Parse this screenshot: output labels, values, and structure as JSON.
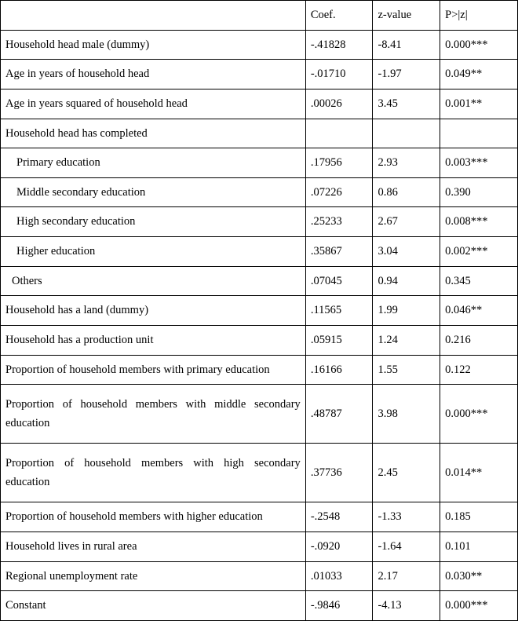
{
  "header": {
    "label": "",
    "coef": "Coef.",
    "z": "z-value",
    "p": "P>|z|"
  },
  "rows": [
    {
      "label": "Household head male (dummy)",
      "coef": "-.41828",
      "z": "-8.41",
      "p": "0.000***"
    },
    {
      "label": "Age in years of household head",
      "coef": "-.01710",
      "z": "-1.97",
      "p": "0.049**"
    },
    {
      "label": "Age in years squared of household head",
      "coef": ".00026",
      "z": "3.45",
      "p": "0.001**"
    },
    {
      "label": "Household head has completed",
      "coef": "",
      "z": "",
      "p": ""
    },
    {
      "label": "Primary education",
      "coef": ".17956",
      "z": "2.93",
      "p": "0.003***",
      "indent": 1
    },
    {
      "label": "Middle secondary education",
      "coef": ".07226",
      "z": "0.86",
      "p": "0.390",
      "indent": 1
    },
    {
      "label": "High secondary education",
      "coef": ".25233",
      "z": "2.67",
      "p": "0.008***",
      "indent": 1
    },
    {
      "label": "Higher education",
      "coef": ".35867",
      "z": "3.04",
      "p": "0.002***",
      "indent": 1
    },
    {
      "label": "Others",
      "coef": ".07045",
      "z": "0.94",
      "p": "0.345",
      "indent": 2
    },
    {
      "label": "Household has a land (dummy)",
      "coef": ".11565",
      "z": "1.99",
      "p": "0.046**"
    },
    {
      "label": "Household has a production unit",
      "coef": ".05915",
      "z": "1.24",
      "p": "0.216"
    },
    {
      "label": "Proportion of household members with primary education",
      "coef": ".16166",
      "z": "1.55",
      "p": "0.122"
    },
    {
      "label": "Proportion of household members with middle secondary education",
      "coef": ".48787",
      "z": "3.98",
      "p": "0.000***",
      "justify": true,
      "tall": true
    },
    {
      "label": "Proportion of household members with high secondary education",
      "coef": ".37736",
      "z": "2.45",
      "p": "0.014**",
      "justify": true,
      "tall": true
    },
    {
      "label": "Proportion of household members with higher education",
      "coef": "-.2548",
      "z": "-1.33",
      "p": "0.185"
    },
    {
      "label": "Household lives in rural area",
      "coef": "-.0920",
      "z": "-1.64",
      "p": "0.101"
    },
    {
      "label": "Regional unemployment rate",
      "coef": ".01033",
      "z": "2.17",
      "p": "0.030**"
    },
    {
      "label": "Constant",
      "coef": "-.9846",
      "z": "-4.13",
      "p": "0.000***"
    }
  ]
}
